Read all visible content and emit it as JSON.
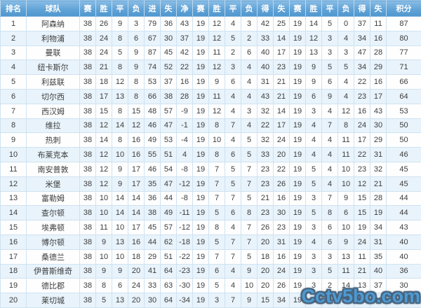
{
  "chart_data": {
    "type": "table",
    "columns": [
      "排名",
      "球队",
      "赛",
      "胜",
      "平",
      "负",
      "进",
      "失",
      "净",
      "赛",
      "胜",
      "平",
      "负",
      "得",
      "失",
      "赛",
      "胜",
      "平",
      "负",
      "得",
      "失",
      "积分"
    ],
    "rows": [
      [
        1,
        "阿森纳",
        38,
        26,
        9,
        3,
        79,
        36,
        43,
        19,
        12,
        4,
        3,
        42,
        25,
        19,
        14,
        5,
        0,
        37,
        11,
        87
      ],
      [
        2,
        "利物浦",
        38,
        24,
        8,
        6,
        67,
        30,
        37,
        19,
        12,
        5,
        2,
        33,
        14,
        19,
        12,
        3,
        4,
        34,
        16,
        80
      ],
      [
        3,
        "曼联",
        38,
        24,
        5,
        9,
        87,
        45,
        42,
        19,
        11,
        2,
        6,
        40,
        17,
        19,
        13,
        3,
        3,
        47,
        28,
        77
      ],
      [
        4,
        "纽卡斯尔",
        38,
        21,
        8,
        9,
        74,
        52,
        22,
        19,
        12,
        3,
        4,
        40,
        23,
        19,
        9,
        5,
        5,
        34,
        29,
        71
      ],
      [
        5,
        "利兹联",
        38,
        18,
        12,
        8,
        53,
        37,
        16,
        19,
        9,
        6,
        4,
        31,
        21,
        19,
        9,
        6,
        4,
        22,
        16,
        66
      ],
      [
        6,
        "切尔西",
        38,
        17,
        13,
        8,
        66,
        38,
        28,
        19,
        11,
        4,
        4,
        43,
        21,
        19,
        6,
        9,
        4,
        23,
        17,
        64
      ],
      [
        7,
        "西汉姆",
        38,
        15,
        8,
        15,
        48,
        57,
        -9,
        19,
        12,
        4,
        3,
        32,
        14,
        19,
        3,
        4,
        12,
        16,
        43,
        53
      ],
      [
        8,
        "维拉",
        38,
        12,
        14,
        12,
        46,
        47,
        -1,
        19,
        8,
        7,
        4,
        22,
        17,
        19,
        4,
        7,
        8,
        24,
        30,
        50
      ],
      [
        9,
        "热刺",
        38,
        14,
        8,
        16,
        49,
        53,
        -4,
        19,
        10,
        4,
        5,
        32,
        24,
        19,
        4,
        4,
        11,
        17,
        29,
        50
      ],
      [
        10,
        "布莱克本",
        38,
        12,
        10,
        16,
        55,
        51,
        4,
        19,
        8,
        6,
        5,
        33,
        20,
        19,
        4,
        4,
        11,
        22,
        31,
        46
      ],
      [
        11,
        "南安普敦",
        38,
        12,
        9,
        17,
        46,
        54,
        -8,
        19,
        7,
        5,
        7,
        23,
        22,
        19,
        5,
        4,
        10,
        23,
        32,
        45
      ],
      [
        12,
        "米堡",
        38,
        12,
        9,
        17,
        35,
        47,
        -12,
        19,
        7,
        5,
        7,
        23,
        26,
        19,
        5,
        4,
        10,
        12,
        21,
        45
      ],
      [
        13,
        "富勒姆",
        38,
        10,
        14,
        14,
        36,
        44,
        -8,
        19,
        7,
        7,
        5,
        21,
        16,
        19,
        3,
        7,
        9,
        15,
        28,
        44
      ],
      [
        14,
        "查尔顿",
        38,
        10,
        14,
        14,
        38,
        49,
        -11,
        19,
        5,
        6,
        8,
        23,
        30,
        19,
        5,
        8,
        6,
        15,
        19,
        44
      ],
      [
        15,
        "埃弗顿",
        38,
        11,
        10,
        17,
        45,
        57,
        -12,
        19,
        8,
        4,
        7,
        26,
        23,
        19,
        3,
        6,
        10,
        19,
        34,
        43
      ],
      [
        16,
        "博尔顿",
        38,
        9,
        13,
        16,
        44,
        62,
        -18,
        19,
        5,
        7,
        7,
        20,
        31,
        19,
        4,
        6,
        9,
        24,
        31,
        40
      ],
      [
        17,
        "桑德兰",
        38,
        10,
        10,
        18,
        29,
        51,
        -22,
        19,
        7,
        7,
        5,
        18,
        16,
        19,
        3,
        3,
        13,
        11,
        35,
        40
      ],
      [
        18,
        "伊普斯维奇",
        38,
        9,
        9,
        20,
        41,
        64,
        -23,
        19,
        6,
        4,
        9,
        20,
        24,
        19,
        3,
        5,
        11,
        21,
        40,
        36
      ],
      [
        19,
        "德比郡",
        38,
        8,
        6,
        24,
        33,
        63,
        -30,
        19,
        5,
        4,
        10,
        20,
        26,
        19,
        3,
        2,
        14,
        13,
        37,
        30
      ],
      [
        20,
        "莱切城",
        38,
        5,
        13,
        20,
        30,
        64,
        -34,
        19,
        3,
        7,
        9,
        15,
        34,
        19,
        2,
        6,
        11,
        15,
        30,
        28
      ]
    ]
  },
  "watermark": {
    "text": "Cctv5bo.com"
  },
  "colors": {
    "header_bg_top": "#8abde5",
    "header_bg_bottom": "#4f96ce",
    "header_text": "#ffffff",
    "row_bg": "#fefefe",
    "row_alt_bg": "#e8f3fb",
    "border": "#cfe2f1",
    "body_text": "#3d3d3d",
    "watermark_fill": "#4e9ad3",
    "watermark_outline": "#47627b"
  }
}
